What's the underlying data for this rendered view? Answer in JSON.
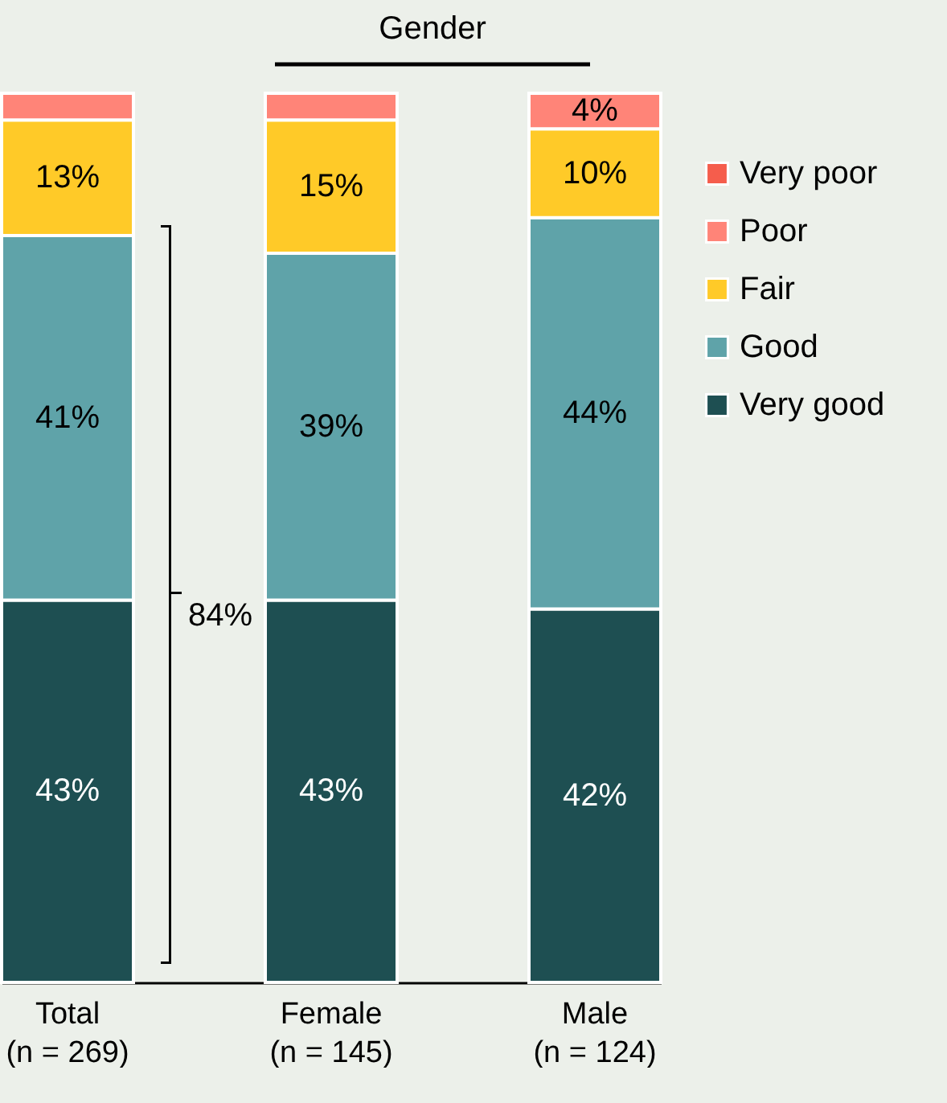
{
  "chart_data": {
    "type": "bar",
    "stacked": true,
    "categories": [
      "Total\n(n = 269)",
      "Female\n(n = 145)",
      "Male\n(n = 124)"
    ],
    "series": [
      {
        "name": "Very good",
        "color": "#1e4f52",
        "values": [
          43,
          43,
          42
        ],
        "value_labels": [
          "43%",
          "43%",
          "42%"
        ]
      },
      {
        "name": "Good",
        "color": "#5fa3a9",
        "values": [
          41,
          39,
          44
        ],
        "value_labels": [
          "41%",
          "39%",
          "44%"
        ]
      },
      {
        "name": "Fair",
        "color": "#ffca28",
        "values": [
          13,
          15,
          10
        ],
        "value_labels": [
          "13%",
          "15%",
          "10%"
        ]
      },
      {
        "name": "Poor",
        "color": "#ff8478",
        "values": [
          3,
          3,
          4
        ],
        "value_labels": [
          null,
          null,
          "4%"
        ]
      },
      {
        "name": "Very poor",
        "color": "#f55d4c",
        "values": [
          null,
          null,
          null
        ],
        "value_labels": [
          null,
          null,
          null
        ]
      }
    ],
    "annotations": [
      "Gender",
      "84%"
    ],
    "legend": "top right",
    "tick_labels": "x"
  }
}
